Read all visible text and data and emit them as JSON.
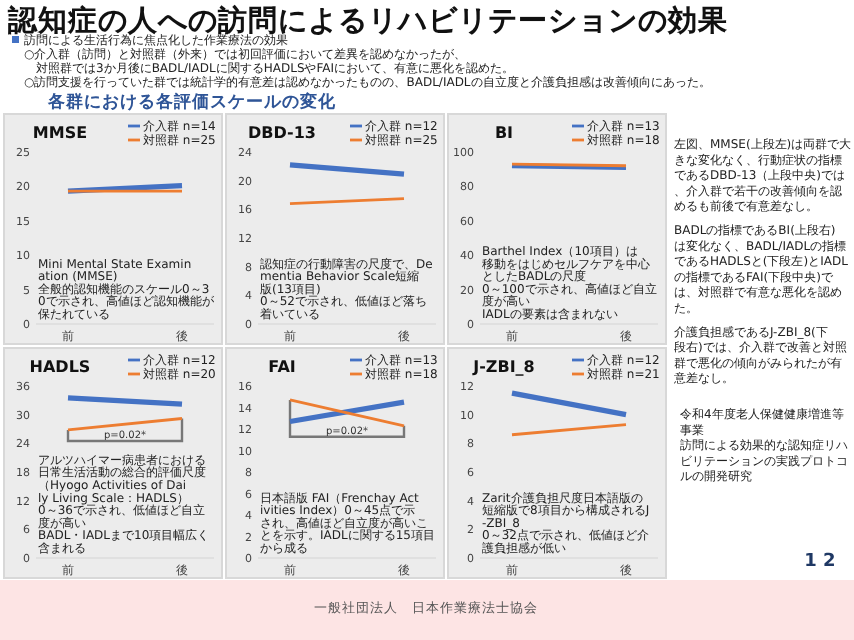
{
  "chart_data": [
    {
      "type": "line",
      "title": "MMSE",
      "categories": [
        "前",
        "後"
      ],
      "ylim": [
        0,
        25
      ],
      "yticks": [
        0,
        5,
        10,
        15,
        20,
        25
      ],
      "legend": "top right",
      "series": [
        {
          "name": "介入群 n=14",
          "color": "#4472c4",
          "values": [
            19.3,
            20.1
          ]
        },
        {
          "name": "対照群 n=25",
          "color": "#ed7d31",
          "values": [
            19.3,
            19.3
          ]
        }
      ],
      "annotations": [
        "Mini Mental State Examination (MMSE)\n全般的認知機能のスケール0～30で示され、高値ほど認知機能が保たれている"
      ]
    },
    {
      "type": "line",
      "title": "DBD-13",
      "categories": [
        "前",
        "後"
      ],
      "ylim": [
        0,
        24
      ],
      "yticks": [
        0,
        4,
        8,
        12,
        16,
        20,
        24
      ],
      "legend": "top right",
      "series": [
        {
          "name": "介入群 n=12",
          "color": "#4472c4",
          "values": [
            22.2,
            20.9
          ]
        },
        {
          "name": "対照群 n=25",
          "color": "#ed7d31",
          "values": [
            16.8,
            17.5
          ]
        }
      ],
      "annotations": [
        "認知症の行動障害の尺度で、Dementia Behavior Scale短縮版(13項目)\n0～52で示され、低値ほど落ち着いている"
      ]
    },
    {
      "type": "line",
      "title": "BI",
      "categories": [
        "前",
        "後"
      ],
      "ylim": [
        0,
        100
      ],
      "yticks": [
        0,
        20,
        40,
        60,
        80,
        100
      ],
      "legend": "top right",
      "series": [
        {
          "name": "介入群 n=13",
          "color": "#4472c4",
          "values": [
            92,
            91
          ]
        },
        {
          "name": "対照群 n=18",
          "color": "#ed7d31",
          "values": [
            93,
            92
          ]
        }
      ],
      "annotations": [
        "Barthel Index（10項目）は移動をはじめセルフケアを中心としたBADLの尺度\n0～100で示され、高値ほど自立度が高い\nIADLの要素は含まれない"
      ]
    },
    {
      "type": "line",
      "title": "HADLS",
      "categories": [
        "前",
        "後"
      ],
      "ylim": [
        0,
        36
      ],
      "yticks": [
        0,
        6,
        12,
        18,
        24,
        30,
        36
      ],
      "legend": "top right",
      "series": [
        {
          "name": "介入群 n=12",
          "color": "#4472c4",
          "values": [
            33.5,
            32.2
          ]
        },
        {
          "name": "対照群 n=20",
          "color": "#ed7d31",
          "values": [
            26.8,
            29.2
          ]
        }
      ],
      "annotations": [
        "アルツハイマー病患者における日常生活活動の総合的評価尺度（Hyogo Activities of Daily Living Scale：HADLS）\n0～36で示され、低値ほど自立度が高い\nBADL・IADLまで10項目幅広く含まれる",
        "p=0.02*"
      ]
    },
    {
      "type": "line",
      "title": "FAI",
      "categories": [
        "前",
        "後"
      ],
      "ylim": [
        0,
        16
      ],
      "yticks": [
        0,
        2,
        4,
        6,
        8,
        10,
        12,
        14,
        16
      ],
      "legend": "top right",
      "series": [
        {
          "name": "介入群 n=13",
          "color": "#4472c4",
          "values": [
            12.7,
            14.5
          ]
        },
        {
          "name": "対照群 n=18",
          "color": "#ed7d31",
          "values": [
            14.7,
            12.3
          ]
        }
      ],
      "annotations": [
        "日本語版 FAI（Frenchay Activities Index）0～45点で示され、高値ほど自立度が高いことを示す。IADLに関する15項目から成る",
        "p=0.02*"
      ]
    },
    {
      "type": "line",
      "title": "J-ZBI_8",
      "categories": [
        "前",
        "後"
      ],
      "ylim": [
        0,
        12
      ],
      "yticks": [
        0,
        2,
        4,
        6,
        8,
        10,
        12
      ],
      "legend": "top right",
      "series": [
        {
          "name": "介入群 n=12",
          "color": "#4472c4",
          "values": [
            11.5,
            10.0
          ]
        },
        {
          "name": "対照群 n=21",
          "color": "#ed7d31",
          "values": [
            8.6,
            9.3
          ]
        }
      ],
      "annotations": [
        "Zarit介護負担尺度日本語版の短縮版で8項目から構成されるJ-ZBI_8\n0～32点で示され、低値ほど介護負担感が低い"
      ]
    },
    {
      "type": "other",
      "title": "認知症の人への訪問によるリハビリテーションの効果",
      "annotations": [
        "訪問による生活行為に焦点化した作業療法の効果",
        "○介入群（訪問）と対照群（外来）では初回評価において差異を認めなかったが、",
        "　対照群では3か月後にBADL/IADLに関するHADLSやFAIにおいて、有意に悪化を認めた。",
        "○訪問支援を行っていた群では統計学的有意差は認めなかったものの、BADL/IADLの自立度と介護負担感は改善傾向にあった。",
        "各群における各評価スケールの変化",
        "左図、MMSE(上段左)は両群で大きな変化なく、行動症状の指標であるDBD-13（上段中央)では、介入群で若干の改善傾向を認めるも前後で有意差なし。",
        "BADLの指標であるBI(上段右)は変化なく、BADL/IADLの指標であるHADLSと(下段左)とIADLの指標であるFAI(下段中央)では、対照群で有意な悪化を認めた。",
        "介護負担感であるJ-ZBI_8(下段右)では、介入群で改善と対照群で悪化の傾向がみられたが有意差なし。",
        "令和4年度老人保健健康増進等事業",
        "訪問による効果的な認知症リハビリテーションの実践プロトコルの開発研究",
        "1 2",
        "一般社団法人　日本作業療法士協会"
      ]
    }
  ]
}
